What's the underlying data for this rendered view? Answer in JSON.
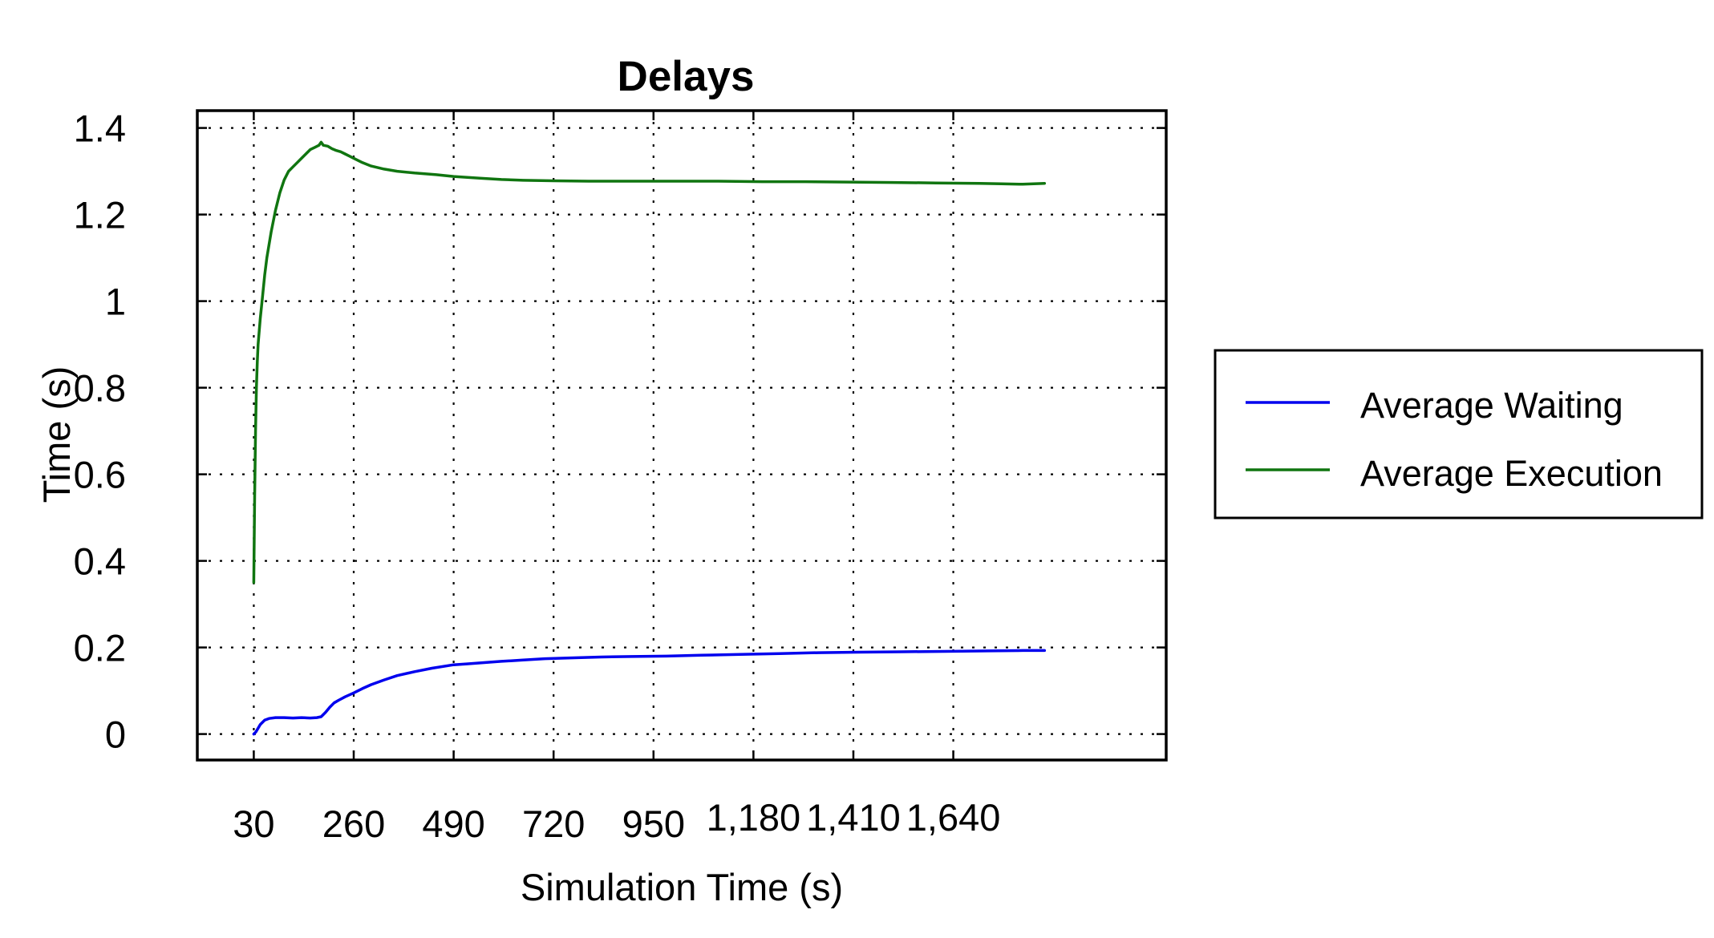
{
  "chart_data": {
    "type": "line",
    "title": "Delays",
    "xlabel": "Simulation Time (s)",
    "ylabel": "Time (s)",
    "xlim": [
      -100,
      2130
    ],
    "ylim": [
      -0.06,
      1.44
    ],
    "x_ticks": [
      30,
      260,
      490,
      720,
      950,
      1180,
      1410,
      1640
    ],
    "x_tick_labels": [
      "30",
      "260",
      "490",
      "720",
      "950",
      "1,180",
      "1,410",
      "1,640"
    ],
    "y_ticks": [
      0,
      0.2,
      0.4,
      0.6,
      0.8,
      1.0,
      1.2,
      1.4
    ],
    "y_tick_labels": [
      "0",
      "0.2",
      "0.4",
      "0.6",
      "0.8",
      "1",
      "1.2",
      "1.4"
    ],
    "grid": true,
    "legend_position": "right",
    "series": [
      {
        "name": "Average Waiting",
        "color": "#0000ee",
        "x": [
          30,
          35,
          45,
          55,
          65,
          80,
          100,
          120,
          140,
          160,
          175,
          185,
          195,
          205,
          215,
          225,
          240,
          260,
          280,
          300,
          330,
          360,
          400,
          440,
          490,
          520,
          560,
          600,
          650,
          700,
          760,
          830,
          900,
          980,
          1060,
          1150,
          1240,
          1330,
          1420,
          1520,
          1620,
          1720,
          1800,
          1850
        ],
        "y": [
          0.0,
          0.005,
          0.022,
          0.032,
          0.036,
          0.038,
          0.038,
          0.037,
          0.038,
          0.037,
          0.038,
          0.04,
          0.05,
          0.062,
          0.072,
          0.078,
          0.086,
          0.095,
          0.105,
          0.114,
          0.125,
          0.135,
          0.144,
          0.152,
          0.16,
          0.162,
          0.165,
          0.168,
          0.171,
          0.174,
          0.176,
          0.178,
          0.179,
          0.18,
          0.182,
          0.184,
          0.186,
          0.188,
          0.189,
          0.19,
          0.191,
          0.192,
          0.193,
          0.193
        ]
      },
      {
        "name": "Average Execution",
        "color": "#107510",
        "x": [
          30,
          32,
          34,
          36,
          38,
          40,
          45,
          50,
          55,
          60,
          70,
          80,
          90,
          100,
          110,
          120,
          130,
          140,
          150,
          160,
          170,
          180,
          185,
          190,
          200,
          210,
          220,
          230,
          240,
          250,
          260,
          280,
          300,
          330,
          360,
          400,
          450,
          490,
          550,
          600,
          650,
          720,
          800,
          900,
          1000,
          1100,
          1200,
          1300,
          1400,
          1500,
          1600,
          1700,
          1750,
          1800,
          1850
        ],
        "y": [
          0.35,
          0.55,
          0.7,
          0.8,
          0.86,
          0.9,
          0.96,
          1.01,
          1.06,
          1.1,
          1.16,
          1.21,
          1.25,
          1.28,
          1.3,
          1.31,
          1.32,
          1.33,
          1.34,
          1.35,
          1.355,
          1.36,
          1.367,
          1.36,
          1.358,
          1.352,
          1.348,
          1.345,
          1.34,
          1.335,
          1.33,
          1.32,
          1.312,
          1.305,
          1.3,
          1.296,
          1.292,
          1.288,
          1.284,
          1.281,
          1.279,
          1.278,
          1.277,
          1.277,
          1.277,
          1.277,
          1.276,
          1.276,
          1.275,
          1.274,
          1.273,
          1.272,
          1.271,
          1.27,
          1.272
        ]
      }
    ]
  }
}
